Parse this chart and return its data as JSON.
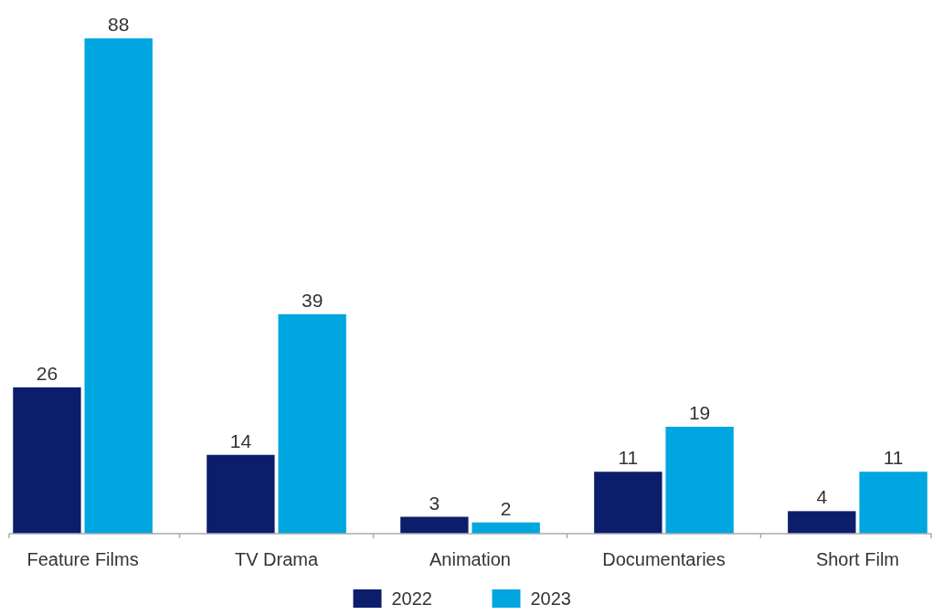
{
  "chart_data": {
    "type": "bar",
    "categories": [
      "Feature Films",
      "TV Drama",
      "Animation",
      "Documentaries",
      "Short Film"
    ],
    "series": [
      {
        "name": "2022",
        "color": "#0c1e6b",
        "values": [
          26,
          14,
          3,
          11,
          4
        ]
      },
      {
        "name": "2023",
        "color": "#00a6e0",
        "values": [
          88,
          39,
          2,
          19,
          11
        ]
      }
    ],
    "data_labels": true,
    "legend": "bottom",
    "grid": false
  }
}
